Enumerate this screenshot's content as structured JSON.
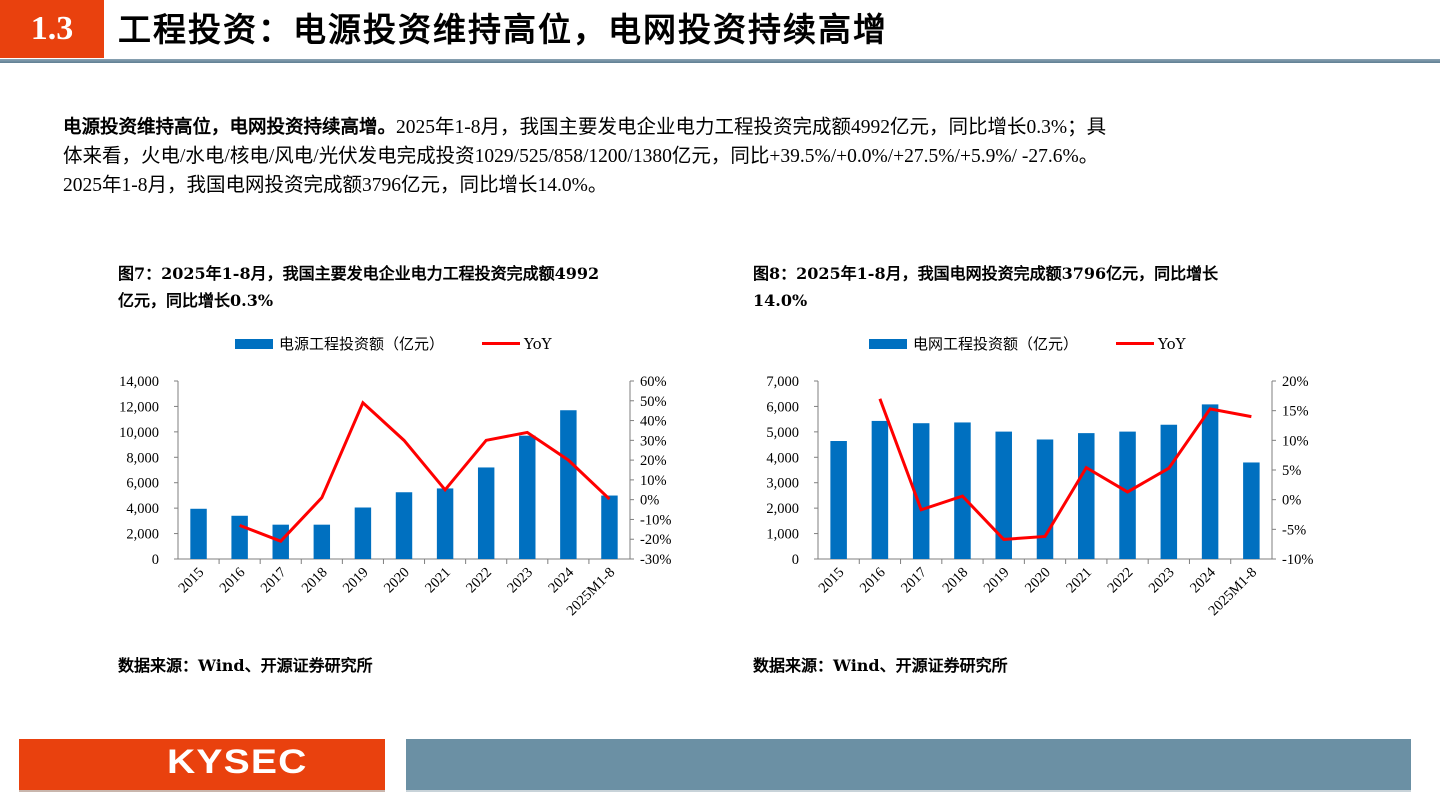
{
  "header": {
    "section_number": "1.3",
    "title": "工程投资：电源投资维持高位，电网投资持续高增"
  },
  "body_text": {
    "lead_bold": "电源投资维持高位，电网投资持续高增。",
    "line1_rest": "2025年1-8月，我国主要发电企业电力工程投资完成额4992亿元，同比增长0.3%；具",
    "line2": "体来看，火电/水电/核电/风电/光伏发电完成投资1029/525/858/1200/1380亿元，同比+39.5%/+0.0%/+27.5%/+5.9%/  -27.6%。",
    "line3": "2025年1-8月，我国电网投资完成额3796亿元，同比增长14.0%。"
  },
  "figures": [
    {
      "title_line1": "图7：2025年1-8月，我国主要发电企业电力工程投资完成额4992",
      "title_line2": "亿元，同比增长0.3%",
      "legend_bar": "电源工程投资额（亿元）",
      "legend_line": "YoY",
      "source": "数据来源：Wind、开源证券研究所"
    },
    {
      "title_line1": "图8：2025年1-8月，我国电网投资完成额3796亿元，同比增长",
      "title_line2": "14.0%",
      "legend_bar": "电网工程投资额（亿元）",
      "legend_line": "YoY",
      "source": "数据来源：Wind、开源证券研究所"
    }
  ],
  "footer": {
    "logo_text": "KYSEC"
  },
  "colors": {
    "accent_orange": "#e9410e",
    "bar_blue": "#0070c0",
    "line_red": "#ff0000",
    "footer_slate": "#6b90a4"
  },
  "chart_data": [
    {
      "type": "bar",
      "title": "图7：2025年1-8月，我国主要发电企业电力工程投资完成额4992亿元，同比增长0.3%",
      "categories": [
        "2015",
        "2016",
        "2017",
        "2018",
        "2019",
        "2020",
        "2021",
        "2022",
        "2023",
        "2024",
        "2025M1-8"
      ],
      "series": [
        {
          "name": "电源工程投资额（亿元）",
          "type": "bar",
          "axis": "left",
          "values": [
            3950,
            3400,
            2700,
            2700,
            4050,
            5250,
            5550,
            7200,
            9700,
            11700,
            4992
          ]
        },
        {
          "name": "YoY",
          "type": "line",
          "axis": "right",
          "values": [
            null,
            -13,
            -21,
            1,
            49,
            30,
            5,
            30,
            34,
            20,
            0.3
          ]
        }
      ],
      "ylim": [
        0,
        14000
      ],
      "yticks": [
        "0",
        "2,000",
        "4,000",
        "6,000",
        "8,000",
        "10,000",
        "12,000",
        "14,000"
      ],
      "y2lim": [
        -30,
        60
      ],
      "y2ticks": [
        "-30%",
        "-20%",
        "-10%",
        "0%",
        "10%",
        "20%",
        "30%",
        "40%",
        "50%",
        "60%"
      ],
      "xlabel": "",
      "ylabel": "",
      "grid": false,
      "legend_position": "top"
    },
    {
      "type": "bar",
      "title": "图8：2025年1-8月，我国电网投资完成额3796亿元，同比增长14.0%",
      "categories": [
        "2015",
        "2016",
        "2017",
        "2018",
        "2019",
        "2020",
        "2021",
        "2022",
        "2023",
        "2024",
        "2025M1-8"
      ],
      "series": [
        {
          "name": "电网工程投资额（亿元）",
          "type": "bar",
          "axis": "left",
          "values": [
            4640,
            5430,
            5340,
            5370,
            5010,
            4700,
            4950,
            5010,
            5280,
            6080,
            3796
          ]
        },
        {
          "name": "YoY",
          "type": "line",
          "axis": "right",
          "values": [
            null,
            17.0,
            -1.7,
            0.6,
            -6.7,
            -6.2,
            5.4,
            1.3,
            5.3,
            15.3,
            14.0
          ]
        }
      ],
      "ylim": [
        0,
        7000
      ],
      "yticks": [
        "0",
        "1,000",
        "2,000",
        "3,000",
        "4,000",
        "5,000",
        "6,000",
        "7,000"
      ],
      "y2lim": [
        -10,
        20
      ],
      "y2ticks": [
        "-10%",
        "-5%",
        "0%",
        "5%",
        "10%",
        "15%",
        "20%"
      ],
      "xlabel": "",
      "ylabel": "",
      "grid": false,
      "legend_position": "top"
    }
  ]
}
